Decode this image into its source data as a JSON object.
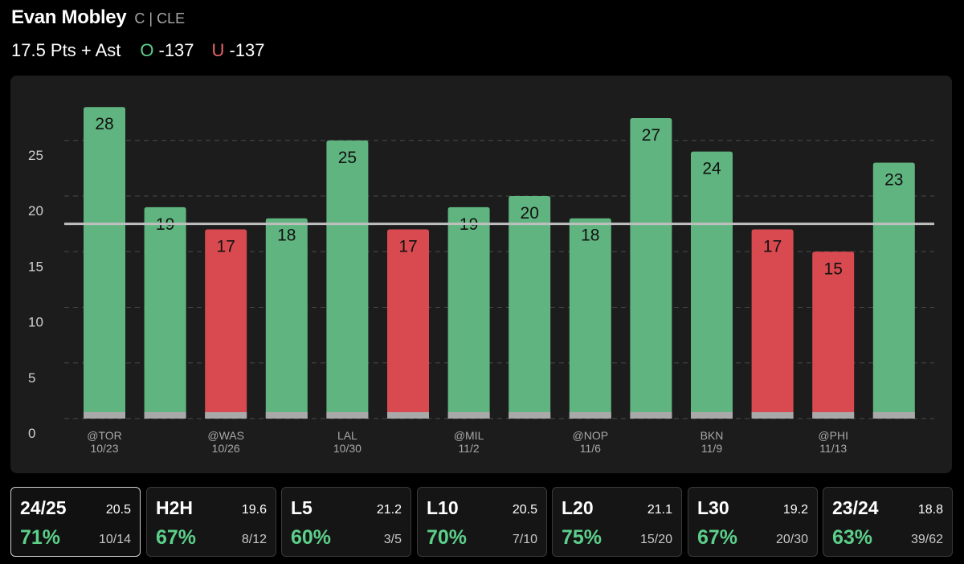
{
  "header": {
    "player_name": "Evan Mobley",
    "player_meta": "C | CLE",
    "prop_label": "17.5 Pts + Ast",
    "over_letter": "O",
    "over_odds": "-137",
    "under_letter": "U",
    "under_odds": "-137"
  },
  "colors": {
    "over": "#5fb47f",
    "under": "#d84a4f",
    "accent_green_text": "#5ccf8a",
    "accent_red_text": "#e8646a",
    "line": "#bfbfbf",
    "bar_base": "#a9a9a9"
  },
  "chart_data": {
    "type": "bar",
    "categories": [
      {
        "opp": "@TOR",
        "date": "10/23"
      },
      {
        "opp": "",
        "date": ""
      },
      {
        "opp": "@WAS",
        "date": "10/26"
      },
      {
        "opp": "",
        "date": ""
      },
      {
        "opp": "LAL",
        "date": "10/30"
      },
      {
        "opp": "",
        "date": ""
      },
      {
        "opp": "@MIL",
        "date": "11/2"
      },
      {
        "opp": "",
        "date": ""
      },
      {
        "opp": "@NOP",
        "date": "11/6"
      },
      {
        "opp": "",
        "date": ""
      },
      {
        "opp": "BKN",
        "date": "11/9"
      },
      {
        "opp": "",
        "date": ""
      },
      {
        "opp": "@PHI",
        "date": "11/13"
      },
      {
        "opp": "",
        "date": ""
      }
    ],
    "values": [
      28,
      19,
      17,
      18,
      25,
      17,
      19,
      20,
      18,
      27,
      24,
      17,
      15,
      23
    ],
    "line_value": 17.5,
    "yticks": [
      0,
      5,
      10,
      15,
      20,
      25
    ],
    "ylim": [
      0,
      28
    ],
    "grid": true,
    "colors_rule": "value above line = over color, below = under color"
  },
  "stats": [
    {
      "label": "24/25",
      "avg": "20.5",
      "pct": "71%",
      "record": "10/14",
      "selected": true
    },
    {
      "label": "H2H",
      "avg": "19.6",
      "pct": "67%",
      "record": "8/12",
      "selected": false
    },
    {
      "label": "L5",
      "avg": "21.2",
      "pct": "60%",
      "record": "3/5",
      "selected": false
    },
    {
      "label": "L10",
      "avg": "20.5",
      "pct": "70%",
      "record": "7/10",
      "selected": false
    },
    {
      "label": "L20",
      "avg": "21.1",
      "pct": "75%",
      "record": "15/20",
      "selected": false
    },
    {
      "label": "L30",
      "avg": "19.2",
      "pct": "67%",
      "record": "20/30",
      "selected": false
    },
    {
      "label": "23/24",
      "avg": "18.8",
      "pct": "63%",
      "record": "39/62",
      "selected": false
    }
  ]
}
